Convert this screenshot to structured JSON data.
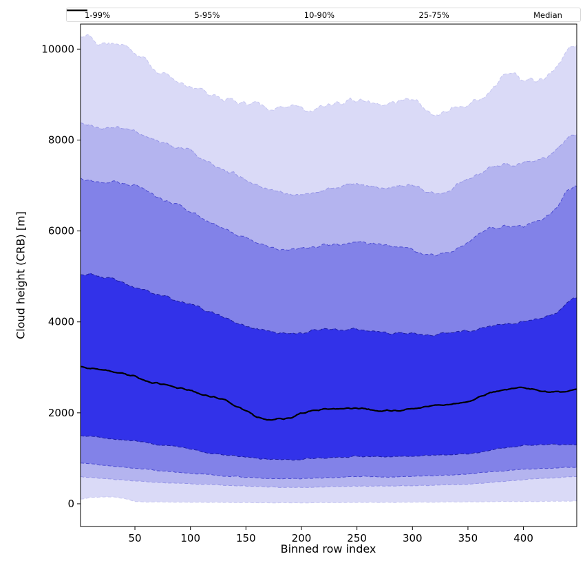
{
  "chart_data": {
    "type": "area",
    "title": "",
    "xlabel": "Binned row index",
    "ylabel": "Cloud height (CRB) [m]",
    "legend_position": "top",
    "grid": false,
    "xlim": [
      1,
      448
    ],
    "ylim": [
      -500,
      10550
    ],
    "xticks": [
      50,
      100,
      150,
      200,
      250,
      300,
      350,
      400
    ],
    "yticks": [
      0,
      2000,
      4000,
      6000,
      8000,
      10000
    ],
    "x": [
      1,
      10,
      20,
      30,
      40,
      50,
      60,
      70,
      80,
      90,
      100,
      110,
      120,
      130,
      140,
      150,
      160,
      170,
      180,
      190,
      200,
      210,
      220,
      230,
      240,
      250,
      260,
      270,
      280,
      290,
      300,
      310,
      320,
      330,
      340,
      350,
      360,
      370,
      380,
      390,
      400,
      410,
      420,
      430,
      440,
      448
    ],
    "percentiles": {
      "p1": [
        100,
        140,
        150,
        150,
        120,
        50,
        40,
        40,
        35,
        35,
        30,
        30,
        30,
        30,
        25,
        25,
        25,
        20,
        20,
        20,
        20,
        20,
        25,
        25,
        25,
        30,
        30,
        30,
        30,
        30,
        35,
        35,
        35,
        40,
        40,
        40,
        45,
        45,
        50,
        50,
        50,
        50,
        55,
        55,
        60,
        60
      ],
      "p5": [
        600,
        580,
        560,
        540,
        520,
        500,
        490,
        470,
        460,
        450,
        440,
        430,
        420,
        410,
        400,
        390,
        380,
        370,
        360,
        360,
        360,
        365,
        370,
        380,
        385,
        390,
        390,
        390,
        390,
        395,
        400,
        405,
        410,
        415,
        420,
        430,
        450,
        470,
        490,
        510,
        530,
        550,
        560,
        570,
        590,
        600
      ],
      "p10": [
        900,
        880,
        850,
        830,
        800,
        780,
        760,
        730,
        710,
        690,
        670,
        650,
        630,
        610,
        600,
        580,
        570,
        560,
        550,
        550,
        550,
        560,
        570,
        580,
        590,
        600,
        600,
        590,
        590,
        590,
        600,
        610,
        620,
        630,
        640,
        650,
        680,
        700,
        720,
        740,
        760,
        770,
        780,
        790,
        800,
        800
      ],
      "p25": [
        1500,
        1480,
        1450,
        1420,
        1400,
        1380,
        1350,
        1300,
        1280,
        1250,
        1200,
        1150,
        1100,
        1080,
        1050,
        1030,
        1000,
        980,
        970,
        970,
        980,
        1000,
        1010,
        1020,
        1030,
        1040,
        1040,
        1030,
        1030,
        1040,
        1050,
        1060,
        1070,
        1080,
        1090,
        1100,
        1130,
        1180,
        1220,
        1250,
        1280,
        1300,
        1300,
        1300,
        1300,
        1300
      ],
      "p50": [
        3000,
        2980,
        2950,
        2900,
        2850,
        2800,
        2700,
        2650,
        2600,
        2550,
        2500,
        2400,
        2350,
        2300,
        2150,
        2050,
        1900,
        1850,
        1870,
        1900,
        1980,
        2050,
        2080,
        2100,
        2100,
        2100,
        2080,
        2050,
        2050,
        2050,
        2080,
        2130,
        2150,
        2180,
        2200,
        2250,
        2350,
        2450,
        2500,
        2520,
        2550,
        2500,
        2450,
        2470,
        2480,
        2500
      ],
      "p75": [
        5050,
        5050,
        5000,
        4950,
        4850,
        4750,
        4700,
        4600,
        4550,
        4450,
        4400,
        4300,
        4200,
        4100,
        4000,
        3900,
        3850,
        3800,
        3750,
        3750,
        3750,
        3800,
        3850,
        3850,
        3800,
        3850,
        3800,
        3800,
        3750,
        3750,
        3750,
        3700,
        3700,
        3750,
        3800,
        3800,
        3850,
        3900,
        3950,
        3950,
        4000,
        4050,
        4100,
        4200,
        4450,
        4550
      ],
      "p90": [
        7150,
        7100,
        7050,
        7100,
        7050,
        7000,
        6900,
        6750,
        6650,
        6550,
        6450,
        6300,
        6150,
        6050,
        5950,
        5850,
        5750,
        5650,
        5600,
        5600,
        5600,
        5650,
        5700,
        5700,
        5700,
        5750,
        5750,
        5700,
        5650,
        5600,
        5600,
        5500,
        5450,
        5500,
        5600,
        5750,
        5950,
        6050,
        6100,
        6100,
        6100,
        6200,
        6300,
        6500,
        6900,
        7000
      ],
      "p95": [
        8350,
        8300,
        8250,
        8300,
        8250,
        8200,
        8100,
        8000,
        7900,
        7850,
        7800,
        7600,
        7450,
        7350,
        7250,
        7150,
        7000,
        6900,
        6850,
        6800,
        6800,
        6850,
        6900,
        6950,
        7000,
        7050,
        7000,
        6950,
        6950,
        7000,
        7000,
        6900,
        6800,
        6850,
        7000,
        7150,
        7250,
        7400,
        7450,
        7450,
        7500,
        7550,
        7600,
        7800,
        8050,
        8100
      ],
      "p99": [
        10300,
        10250,
        10100,
        10150,
        10100,
        9900,
        9750,
        9500,
        9400,
        9300,
        9150,
        9100,
        8950,
        8900,
        8850,
        8800,
        8800,
        8700,
        8700,
        8750,
        8700,
        8650,
        8750,
        8800,
        8850,
        8900,
        8850,
        8800,
        8800,
        8850,
        8900,
        8750,
        8500,
        8600,
        8700,
        8800,
        8900,
        9000,
        9400,
        9500,
        9300,
        9300,
        9400,
        9600,
        10000,
        10100
      ]
    },
    "bands": [
      {
        "label": "1-99%",
        "lower": "p1",
        "upper": "p99",
        "fill": "#dadaf7",
        "edge": "#c6c6f1"
      },
      {
        "label": "5-95%",
        "lower": "p5",
        "upper": "p95",
        "fill": "#b4b4ef",
        "edge": "#9494e6"
      },
      {
        "label": "10-90%",
        "lower": "p10",
        "upper": "p90",
        "fill": "#8282e8",
        "edge": "#4b4bd0"
      },
      {
        "label": "25-75%",
        "lower": "p25",
        "upper": "p75",
        "fill": "#3232e9",
        "edge": "#1d1d9e"
      }
    ],
    "median": {
      "label": "Median",
      "key": "p50",
      "color": "#000000"
    }
  }
}
